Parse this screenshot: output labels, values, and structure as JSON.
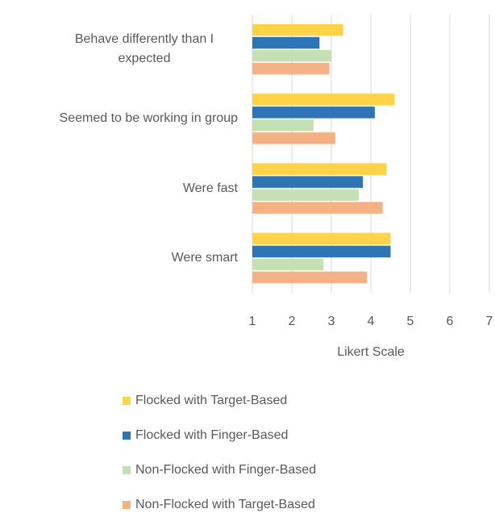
{
  "chart_data": {
    "type": "bar",
    "orientation": "horizontal",
    "categories": [
      "Behave differently than I expected",
      "Seemed to be working in group",
      "Were fast",
      "Were smart"
    ],
    "series": [
      {
        "name": "Flocked with Target-Based",
        "color": "#ffd347",
        "values": [
          3.3,
          4.6,
          4.4,
          4.5
        ]
      },
      {
        "name": "Flocked with Finger-Based",
        "color": "#2e75b6",
        "values": [
          2.7,
          4.1,
          3.8,
          4.5
        ]
      },
      {
        "name": "Non-Flocked with Finger-Based",
        "color": "#c5e0b4",
        "values": [
          3.0,
          2.55,
          3.7,
          2.8
        ]
      },
      {
        "name": "Non-Flocked with Target-Based",
        "color": "#f4b183",
        "values": [
          2.95,
          3.1,
          4.3,
          3.9
        ]
      }
    ],
    "x_label": "Likert Scale",
    "xlim": [
      1,
      7
    ],
    "xticks": [
      1,
      2,
      3,
      4,
      5,
      6,
      7
    ],
    "grid": true,
    "legend": "bottom"
  }
}
